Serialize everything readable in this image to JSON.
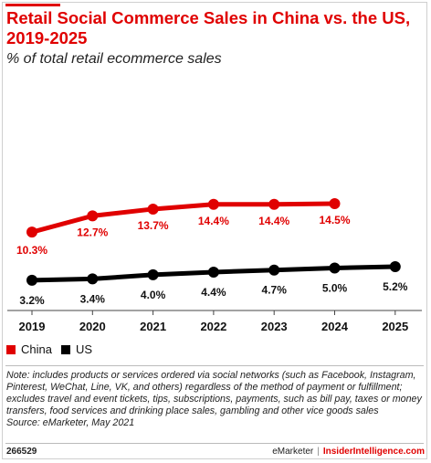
{
  "chart_data": {
    "type": "line",
    "title": "Retail Social Commerce Sales in China vs. the US, 2019-2025",
    "subtitle": "% of total retail ecommerce sales",
    "categories": [
      "2019",
      "2020",
      "2021",
      "2022",
      "2023",
      "2024",
      "2025"
    ],
    "series": [
      {
        "name": "China",
        "color": "#e00000",
        "values": [
          10.3,
          12.7,
          13.7,
          14.4,
          14.4,
          14.5,
          null
        ],
        "labels": [
          "10.3%",
          "12.7%",
          "13.7%",
          "14.4%",
          "14.4%",
          "14.5%",
          ""
        ]
      },
      {
        "name": "US",
        "color": "#000000",
        "values": [
          3.2,
          3.4,
          4.0,
          4.4,
          4.7,
          5.0,
          5.2
        ],
        "labels": [
          "3.2%",
          "3.4%",
          "4.0%",
          "4.4%",
          "4.7%",
          "5.0%",
          "5.2%"
        ]
      }
    ],
    "legend_position": "bottom-left",
    "grid": false
  },
  "note": "Note: includes products or services ordered via social networks (such as Facebook, Instagram, Pinterest, WeChat, Line, VK, and others) regardless of the method of payment or fulfillment; excludes travel and event tickets, tips, subscriptions, payments, such as bill pay, taxes or money transfers, food services and drinking place sales, gambling and other vice goods sales",
  "source": "Source: eMarketer, May 2021",
  "footer": {
    "chart_id": "266529",
    "brand": "eMarketer",
    "separator": "|",
    "site": "InsiderIntelligence.com"
  }
}
